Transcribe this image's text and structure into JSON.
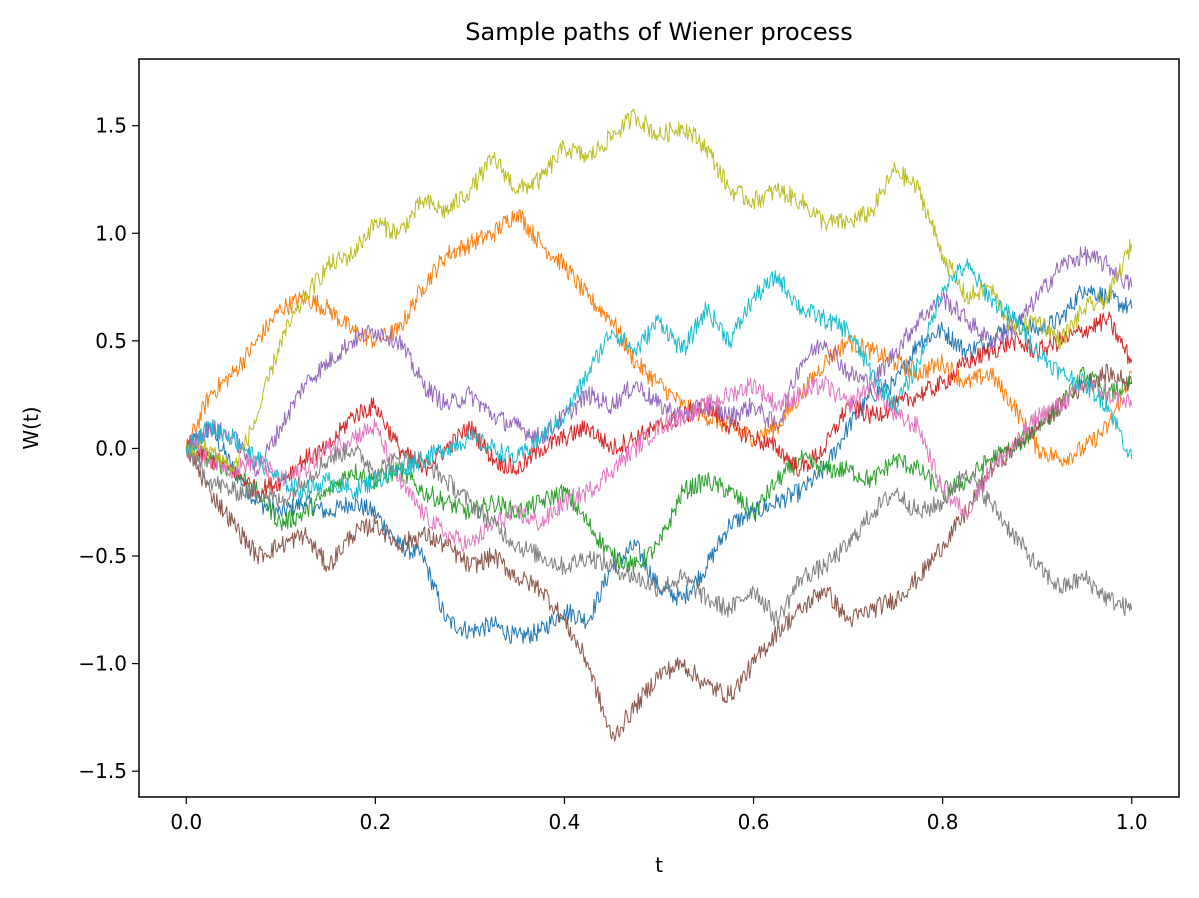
{
  "chart_data": {
    "type": "line",
    "title": "Sample paths of Wiener process",
    "xlabel": "t",
    "ylabel": "W(t)",
    "xlim": [
      -0.05,
      1.05
    ],
    "ylim": [
      -1.62,
      1.81
    ],
    "grid": false,
    "x_ticks": [
      0.0,
      0.2,
      0.4,
      0.6,
      0.8,
      1.0
    ],
    "x_tick_labels": [
      "0.0",
      "0.2",
      "0.4",
      "0.6",
      "0.8",
      "1.0"
    ],
    "y_ticks": [
      -1.5,
      -1.0,
      -0.5,
      0.0,
      0.5,
      1.0,
      1.5
    ],
    "y_tick_labels": [
      "−1.5",
      "−1.0",
      "−0.5",
      "0.0",
      "0.5",
      "1.0",
      "1.5"
    ],
    "x": [
      0.0,
      0.025,
      0.05,
      0.075,
      0.1,
      0.125,
      0.15,
      0.175,
      0.2,
      0.225,
      0.25,
      0.275,
      0.3,
      0.325,
      0.35,
      0.375,
      0.4,
      0.425,
      0.45,
      0.475,
      0.5,
      0.525,
      0.55,
      0.575,
      0.6,
      0.625,
      0.65,
      0.675,
      0.7,
      0.725,
      0.75,
      0.775,
      0.8,
      0.825,
      0.85,
      0.875,
      0.9,
      0.925,
      0.95,
      0.975,
      1.0
    ],
    "series": [
      {
        "color": "#1f77b4",
        "values": [
          0.0,
          0.1,
          -0.1,
          -0.25,
          -0.3,
          -0.25,
          -0.3,
          -0.25,
          -0.3,
          -0.45,
          -0.5,
          -0.8,
          -0.85,
          -0.82,
          -0.88,
          -0.85,
          -0.75,
          -0.8,
          -0.55,
          -0.45,
          -0.65,
          -0.7,
          -0.55,
          -0.35,
          -0.3,
          -0.25,
          -0.2,
          -0.1,
          0.1,
          0.25,
          0.3,
          0.5,
          0.55,
          0.45,
          0.5,
          0.6,
          0.55,
          0.6,
          0.75,
          0.7,
          0.65
        ]
      },
      {
        "color": "#ff7f0e",
        "values": [
          0.0,
          0.25,
          0.35,
          0.5,
          0.65,
          0.7,
          0.65,
          0.55,
          0.5,
          0.55,
          0.75,
          0.9,
          0.95,
          1.0,
          1.1,
          0.95,
          0.85,
          0.7,
          0.6,
          0.4,
          0.3,
          0.2,
          0.15,
          0.1,
          0.05,
          0.1,
          0.25,
          0.4,
          0.5,
          0.45,
          0.4,
          0.35,
          0.4,
          0.3,
          0.35,
          0.2,
          0.0,
          -0.05,
          0.0,
          0.1,
          0.35
        ]
      },
      {
        "color": "#2ca02c",
        "values": [
          0.0,
          -0.05,
          -0.1,
          -0.2,
          -0.35,
          -0.3,
          -0.2,
          -0.1,
          -0.15,
          -0.1,
          -0.2,
          -0.25,
          -0.3,
          -0.25,
          -0.3,
          -0.25,
          -0.2,
          -0.35,
          -0.5,
          -0.55,
          -0.45,
          -0.2,
          -0.15,
          -0.2,
          -0.3,
          -0.15,
          -0.05,
          -0.1,
          -0.1,
          -0.15,
          -0.05,
          -0.1,
          -0.2,
          -0.15,
          -0.05,
          0.0,
          0.1,
          0.2,
          0.35,
          0.25,
          0.3
        ]
      },
      {
        "color": "#d62728",
        "values": [
          0.0,
          -0.05,
          -0.1,
          -0.2,
          -0.15,
          -0.05,
          0.0,
          0.15,
          0.2,
          0.0,
          -0.1,
          0.0,
          0.1,
          -0.05,
          -0.1,
          0.0,
          0.05,
          0.1,
          0.0,
          0.05,
          0.1,
          0.15,
          0.2,
          0.1,
          0.05,
          0.0,
          -0.1,
          0.0,
          0.2,
          0.15,
          0.2,
          0.25,
          0.3,
          0.4,
          0.45,
          0.5,
          0.45,
          0.5,
          0.55,
          0.6,
          0.4
        ]
      },
      {
        "color": "#9467bd",
        "values": [
          0.0,
          0.1,
          0.05,
          -0.1,
          0.1,
          0.3,
          0.4,
          0.5,
          0.55,
          0.5,
          0.3,
          0.2,
          0.25,
          0.15,
          0.1,
          0.05,
          0.15,
          0.25,
          0.2,
          0.3,
          0.2,
          0.15,
          0.2,
          0.15,
          0.2,
          0.1,
          0.4,
          0.5,
          0.35,
          0.3,
          0.45,
          0.6,
          0.7,
          0.6,
          0.5,
          0.55,
          0.7,
          0.85,
          0.9,
          0.85,
          0.75
        ]
      },
      {
        "color": "#8c564b",
        "values": [
          0.0,
          -0.2,
          -0.35,
          -0.5,
          -0.45,
          -0.4,
          -0.55,
          -0.4,
          -0.35,
          -0.45,
          -0.4,
          -0.45,
          -0.55,
          -0.5,
          -0.6,
          -0.65,
          -0.8,
          -1.0,
          -1.35,
          -1.2,
          -1.05,
          -1.0,
          -1.1,
          -1.15,
          -1.0,
          -0.85,
          -0.75,
          -0.65,
          -0.8,
          -0.75,
          -0.7,
          -0.6,
          -0.45,
          -0.3,
          -0.1,
          0.0,
          0.1,
          0.2,
          0.3,
          0.35,
          0.3
        ]
      },
      {
        "color": "#e377c2",
        "values": [
          0.0,
          -0.05,
          -0.1,
          -0.05,
          -0.15,
          -0.1,
          0.0,
          0.05,
          0.1,
          -0.15,
          -0.3,
          -0.4,
          -0.45,
          -0.35,
          -0.3,
          -0.35,
          -0.25,
          -0.2,
          -0.1,
          0.0,
          0.1,
          0.15,
          0.2,
          0.25,
          0.3,
          0.2,
          0.25,
          0.3,
          0.2,
          0.3,
          0.15,
          0.1,
          -0.2,
          -0.3,
          -0.1,
          0.0,
          0.15,
          0.2,
          0.3,
          0.25,
          0.2
        ]
      },
      {
        "color": "#7f7f7f",
        "values": [
          0.0,
          -0.15,
          -0.2,
          -0.2,
          -0.25,
          -0.15,
          -0.05,
          0.0,
          -0.1,
          -0.05,
          -0.05,
          -0.15,
          -0.25,
          -0.35,
          -0.45,
          -0.5,
          -0.55,
          -0.5,
          -0.55,
          -0.6,
          -0.65,
          -0.6,
          -0.7,
          -0.75,
          -0.65,
          -0.8,
          -0.6,
          -0.55,
          -0.45,
          -0.3,
          -0.2,
          -0.3,
          -0.25,
          -0.1,
          -0.25,
          -0.4,
          -0.55,
          -0.65,
          -0.6,
          -0.7,
          -0.75
        ]
      },
      {
        "color": "#bcbd22",
        "values": [
          0.0,
          0.0,
          -0.1,
          0.15,
          0.5,
          0.7,
          0.85,
          0.9,
          1.05,
          1.0,
          1.15,
          1.1,
          1.2,
          1.35,
          1.2,
          1.25,
          1.4,
          1.35,
          1.45,
          1.55,
          1.45,
          1.5,
          1.4,
          1.2,
          1.15,
          1.2,
          1.15,
          1.05,
          1.05,
          1.1,
          1.3,
          1.2,
          0.9,
          0.7,
          0.75,
          0.55,
          0.6,
          0.5,
          0.65,
          0.7,
          0.95
        ]
      },
      {
        "color": "#17becf",
        "values": [
          0.0,
          0.1,
          0.05,
          -0.05,
          -0.15,
          -0.2,
          -0.15,
          -0.2,
          -0.15,
          -0.1,
          -0.05,
          0.0,
          0.05,
          0.0,
          -0.05,
          0.05,
          0.15,
          0.35,
          0.55,
          0.45,
          0.6,
          0.45,
          0.65,
          0.5,
          0.7,
          0.8,
          0.65,
          0.6,
          0.55,
          0.35,
          0.2,
          0.4,
          0.75,
          0.85,
          0.7,
          0.6,
          0.45,
          0.35,
          0.3,
          0.2,
          -0.05
        ]
      }
    ]
  }
}
